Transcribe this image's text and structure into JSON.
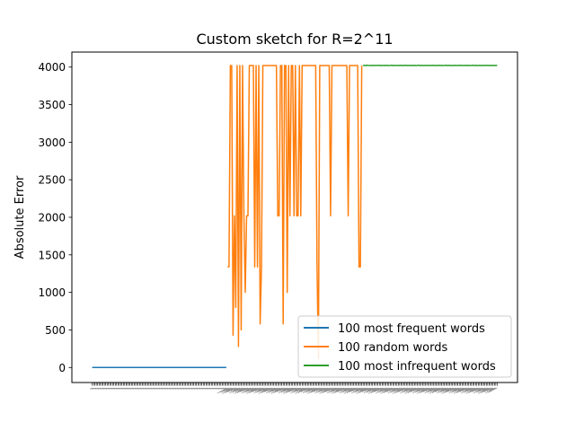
{
  "chart_data": {
    "type": "line",
    "title": "Custom sketch for R=2^11",
    "xlabel": "",
    "ylabel": "Absolute Error",
    "ylim": [
      -200,
      4200
    ],
    "yticks": [
      0,
      500,
      1000,
      1500,
      2000,
      2500,
      3000,
      3500,
      4000
    ],
    "grid": false,
    "legend_position": "lower-right",
    "series": [
      {
        "name": "100 most frequent words",
        "color": "#1f77b4",
        "x_start": 0,
        "values": [
          0,
          0,
          0,
          0,
          0,
          0,
          0,
          0,
          0,
          0,
          0,
          0,
          0,
          0,
          0,
          0,
          0,
          0,
          0,
          0,
          0,
          0,
          0,
          0,
          0,
          0,
          0,
          0,
          0,
          0,
          0,
          0,
          0,
          0,
          0,
          0,
          0,
          0,
          0,
          0,
          0,
          0,
          0,
          0,
          0,
          0,
          0,
          0,
          0,
          0,
          0,
          0,
          0,
          0,
          0,
          0,
          0,
          0,
          0,
          0,
          0,
          0,
          0,
          0,
          0,
          0,
          0,
          0,
          0,
          0,
          0,
          0,
          0,
          0,
          0,
          0,
          0,
          0,
          0,
          0,
          0,
          0,
          0,
          0,
          0,
          0,
          0,
          0,
          0,
          0,
          0,
          0,
          0,
          0,
          0,
          0,
          0,
          0,
          0,
          0
        ]
      },
      {
        "name": "100 random words",
        "color": "#ff7f0e",
        "x_start": 100,
        "values": [
          1340,
          1340,
          4020,
          4020,
          430,
          2020,
          800,
          4020,
          280,
          4020,
          500,
          4020,
          2020,
          1000,
          2020,
          2020,
          4020,
          4020,
          4020,
          4020,
          1340,
          4020,
          1340,
          4020,
          580,
          1340,
          4020,
          4020,
          4020,
          4020,
          4020,
          4020,
          4020,
          4020,
          4020,
          4020,
          4020,
          2020,
          2020,
          4020,
          4020,
          580,
          4020,
          4020,
          1000,
          4020,
          2020,
          4020,
          4020,
          2020,
          4020,
          2020,
          2020,
          4020,
          2020,
          4020,
          4020,
          4020,
          4020,
          4020,
          4020,
          4020,
          4020,
          4020,
          4020,
          4020,
          1340,
          120,
          4020,
          4020,
          4020,
          4020,
          4020,
          4020,
          4020,
          4020,
          2020,
          4020,
          4020,
          4020,
          4020,
          4020,
          4020,
          4020,
          4020,
          4020,
          4020,
          4020,
          4020,
          2020,
          4020,
          4020,
          4020,
          4020,
          4020,
          4020,
          4020,
          1340,
          1340,
          4020
        ]
      },
      {
        "name": "100 most infrequent words",
        "color": "#2ca02c",
        "x_start": 200,
        "values": [
          4020,
          4023,
          4021,
          4025,
          4022,
          4020,
          4024,
          4021,
          4023,
          4022,
          4020,
          4025,
          4021,
          4023,
          4020,
          4022,
          4024,
          4021,
          4023,
          4020,
          4022,
          4025,
          4021,
          4023,
          4022,
          4020,
          4024,
          4021,
          4023,
          4022,
          4020,
          4025,
          4021,
          4023,
          4020,
          4022,
          4024,
          4021,
          4023,
          4020,
          4022,
          4025,
          4021,
          4023,
          4022,
          4020,
          4024,
          4021,
          4023,
          4022,
          4020,
          4025,
          4021,
          4023,
          4020,
          4022,
          4024,
          4021,
          4023,
          4020,
          4022,
          4025,
          4021,
          4023,
          4022,
          4020,
          4024,
          4021,
          4023,
          4022,
          4020,
          4025,
          4021,
          4023,
          4020,
          4022,
          4024,
          4021,
          4023,
          4020,
          4022,
          4025,
          4021,
          4023,
          4022,
          4020,
          4024,
          4021,
          4023,
          4022,
          4020,
          4025,
          4021,
          4023,
          4020,
          4022,
          4024,
          4021,
          4023,
          4020
        ]
      }
    ]
  }
}
